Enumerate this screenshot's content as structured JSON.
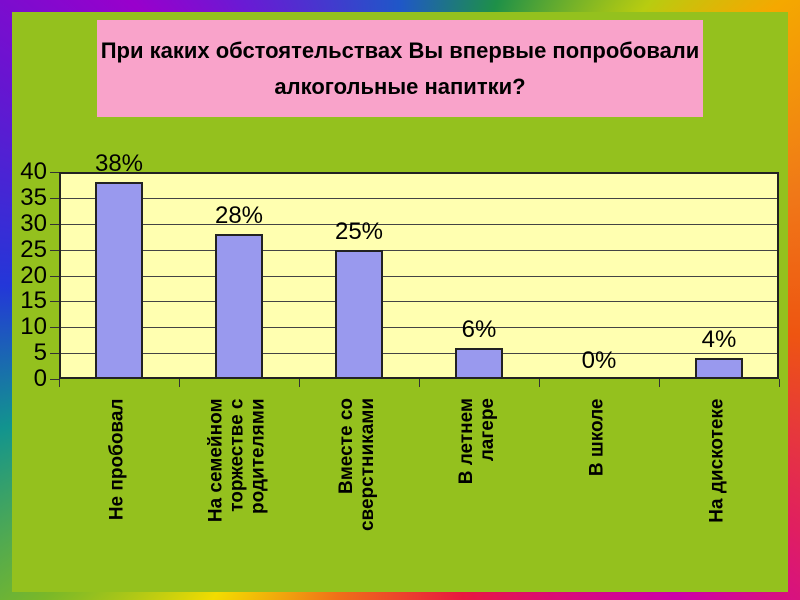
{
  "title": {
    "text": "При каких обстоятельствах Вы впервые попробовали алкогольные напитки?",
    "lines": [
      "При каких обстоятельствах Вы впервые попробовали",
      "алкогольные напитки?"
    ]
  },
  "chart_data": {
    "type": "bar",
    "title": "При каких обстоятельствах Вы впервые попробовали алкогольные напитки?",
    "categories": [
      "Не пробовал",
      "На семейном торжестве с родителями",
      "Вместе со сверстниками",
      "В летнем лагере",
      "В школе",
      "На дискотеке"
    ],
    "category_lines": [
      [
        "Не пробовал"
      ],
      [
        "На семейном",
        "торжестве с",
        "родителями"
      ],
      [
        "Вместе со",
        "сверстниками"
      ],
      [
        "В летнем",
        "лагере"
      ],
      [
        "В школе"
      ],
      [
        "На дискотеке"
      ]
    ],
    "values": [
      38,
      28,
      25,
      6,
      0,
      4
    ],
    "value_labels": [
      "38%",
      "28%",
      "25%",
      "6%",
      "0%",
      "4%"
    ],
    "xlabel": "",
    "ylabel": "",
    "ylim": [
      0,
      40
    ],
    "y_ticks": [
      0,
      5,
      10,
      15,
      20,
      25,
      30,
      35,
      40
    ],
    "grid": true,
    "legend": false,
    "colors": {
      "slide_background": "#94c11e",
      "title_background": "#f9a3ca",
      "plot_background": "#ffffb0",
      "bar_fill": "#9999ee",
      "bar_border": "#222222",
      "text": "#000000"
    }
  }
}
